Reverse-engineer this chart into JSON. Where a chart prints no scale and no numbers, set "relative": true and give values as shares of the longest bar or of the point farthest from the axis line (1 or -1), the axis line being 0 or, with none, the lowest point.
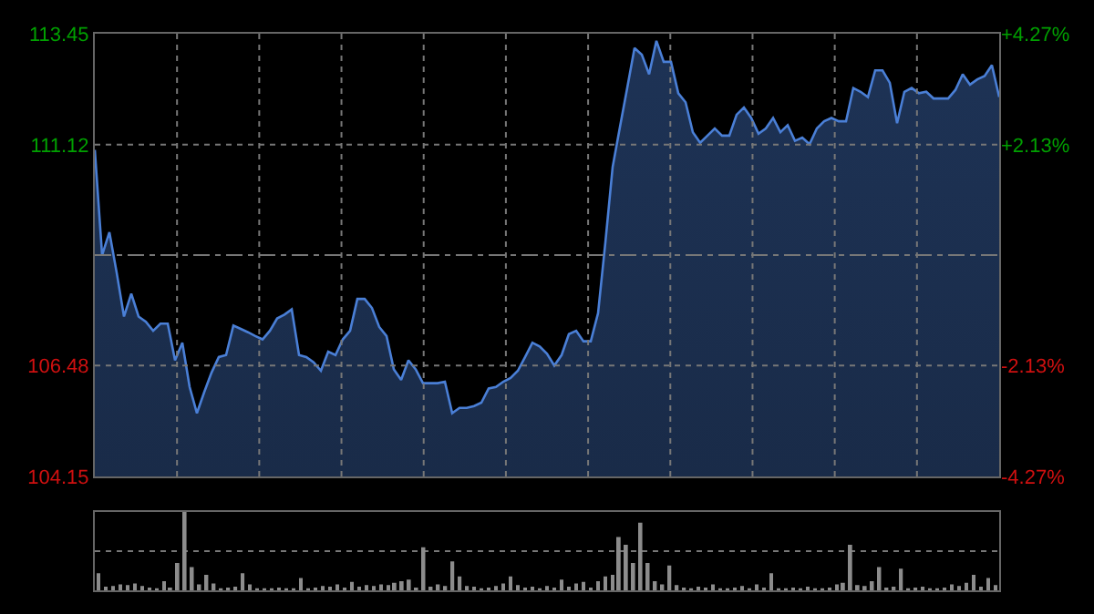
{
  "chart_data": [
    {
      "type": "area",
      "categories": [
        null,
        null,
        null,
        null,
        null,
        null,
        null,
        null,
        null,
        null,
        null,
        null,
        null,
        null,
        null,
        null,
        null,
        null,
        null,
        null,
        null,
        null,
        null,
        null,
        null,
        null,
        null,
        null,
        null,
        null,
        null,
        null,
        null,
        null,
        null,
        null,
        null,
        null,
        null,
        null,
        null,
        null,
        null,
        null,
        null,
        null,
        null,
        null,
        null,
        null,
        null,
        null,
        null,
        null,
        null,
        null,
        null,
        null,
        null,
        null,
        null,
        null,
        null,
        null,
        null,
        null,
        null,
        null,
        null,
        null,
        null,
        null,
        null,
        null,
        null,
        null,
        null,
        null,
        null,
        null,
        null,
        null,
        null,
        null,
        null,
        null,
        null,
        null,
        null,
        null,
        null,
        null,
        null,
        null,
        null,
        null,
        null,
        null,
        null,
        null,
        null,
        null,
        null,
        null,
        null,
        null,
        null,
        null,
        null,
        null,
        null,
        null,
        null,
        null,
        null,
        null,
        null,
        null,
        null,
        null,
        null,
        null,
        null,
        null,
        null
      ],
      "series": [
        {
          "color": "#4a7fd6",
          "values": [
            111.01,
            108.8,
            109.28,
            108.43,
            107.51,
            107.99,
            107.51,
            107.4,
            107.21,
            107.36,
            107.36,
            106.59,
            106.96,
            106.03,
            105.48,
            105.92,
            106.33,
            106.66,
            106.7,
            107.32,
            107.25,
            107.18,
            107.1,
            107.03,
            107.21,
            107.47,
            107.55,
            107.66,
            106.7,
            106.66,
            106.55,
            106.37,
            106.77,
            106.7,
            107.03,
            107.21,
            107.88,
            107.88,
            107.69,
            107.29,
            107.1,
            106.4,
            106.18,
            106.59,
            106.4,
            106.11,
            106.11,
            106.11,
            106.14,
            105.48,
            105.59,
            105.59,
            105.63,
            105.7,
            106.0,
            106.03,
            106.14,
            106.22,
            106.37,
            106.66,
            106.96,
            106.88,
            106.73,
            106.48,
            106.7,
            107.14,
            107.21,
            106.99,
            106.99,
            107.58,
            109.06,
            110.65,
            111.49,
            112.31,
            113.15,
            113.01,
            112.6,
            113.3,
            112.86,
            112.86,
            112.2,
            112.01,
            111.38,
            111.16,
            111.31,
            111.46,
            111.31,
            111.31,
            111.75,
            111.9,
            111.68,
            111.35,
            111.46,
            111.68,
            111.38,
            111.53,
            111.2,
            111.27,
            111.13,
            111.46,
            111.61,
            111.68,
            111.61,
            111.61,
            112.31,
            112.23,
            112.12,
            112.68,
            112.68,
            112.42,
            111.57,
            112.23,
            112.31,
            112.2,
            112.23,
            112.09,
            112.09,
            112.09,
            112.27,
            112.6,
            112.38,
            112.49,
            112.56,
            112.79,
            112.12
          ]
        }
      ],
      "ylim": [
        104.15,
        113.45
      ],
      "yticks": [
        104.15,
        106.48,
        {
          "value": 108.8,
          "label": null
        },
        111.12,
        113.45
      ],
      "y2lim": [
        -4.27,
        4.27
      ],
      "y2ticks": [
        {
          "value": -4.27,
          "label": "-4.27%"
        },
        {
          "value": -2.13,
          "label": "-2.13%"
        },
        {
          "value": 0,
          "label": null
        },
        {
          "value": 2.13,
          "label": "+2.13%"
        },
        {
          "value": 4.27,
          "label": "+4.27%"
        }
      ],
      "grid": true,
      "tick_labels": "y"
    },
    {
      "type": "bar",
      "relative": true,
      "color": "#8c8c8c",
      "ref_lines": [
        {
          "axis": "y",
          "value": 0.5,
          "color": "#777777",
          "line_style": "dotted"
        }
      ],
      "categories": [
        null,
        null,
        null,
        null,
        null,
        null,
        null,
        null,
        null,
        null,
        null,
        null,
        null,
        null,
        null,
        null,
        null,
        null,
        null,
        null,
        null,
        null,
        null,
        null,
        null,
        null,
        null,
        null,
        null,
        null,
        null,
        null,
        null,
        null,
        null,
        null,
        null,
        null,
        null,
        null,
        null,
        null,
        null,
        null,
        null,
        null,
        null,
        null,
        null,
        null,
        null,
        null,
        null,
        null,
        null,
        null,
        null,
        null,
        null,
        null,
        null,
        null,
        null,
        null,
        null,
        null,
        null,
        null,
        null,
        null,
        null,
        null,
        null,
        null,
        null,
        null,
        null,
        null,
        null,
        null,
        null,
        null,
        null,
        null,
        null,
        null,
        null,
        null,
        null,
        null,
        null,
        null,
        null,
        null,
        null,
        null,
        null,
        null,
        null,
        null,
        null,
        null,
        null,
        null,
        null,
        null,
        null,
        null,
        null,
        null,
        null,
        null,
        null,
        null,
        null,
        null,
        null,
        null,
        null,
        null,
        null,
        null,
        null,
        null,
        null
      ],
      "values": [
        0.22,
        0.05,
        0.06,
        0.08,
        0.07,
        0.09,
        0.06,
        0.04,
        0.03,
        0.12,
        0.04,
        0.35,
        1.0,
        0.3,
        0.08,
        0.2,
        0.09,
        0.03,
        0.04,
        0.05,
        0.22,
        0.08,
        0.03,
        0.02,
        0.03,
        0.04,
        0.02,
        0.03,
        0.16,
        0.03,
        0.04,
        0.06,
        0.05,
        0.08,
        0.04,
        0.11,
        0.05,
        0.07,
        0.06,
        0.08,
        0.07,
        0.1,
        0.12,
        0.14,
        0.04,
        0.55,
        0.05,
        0.08,
        0.06,
        0.37,
        0.18,
        0.06,
        0.05,
        0.03,
        0.04,
        0.06,
        0.09,
        0.18,
        0.07,
        0.04,
        0.05,
        0.03,
        0.06,
        0.04,
        0.14,
        0.05,
        0.09,
        0.11,
        0.04,
        0.12,
        0.18,
        0.2,
        0.68,
        0.58,
        0.35,
        0.86,
        0.35,
        0.12,
        0.08,
        0.32,
        0.07,
        0.04,
        0.03,
        0.05,
        0.04,
        0.08,
        0.03,
        0.02,
        0.04,
        0.06,
        0.03,
        0.08,
        0.04,
        0.22,
        0.03,
        0.02,
        0.04,
        0.03,
        0.05,
        0.02,
        0.03,
        0.04,
        0.08,
        0.1,
        0.58,
        0.07,
        0.06,
        0.12,
        0.3,
        0.04,
        0.05,
        0.28,
        0.03,
        0.04,
        0.05,
        0.03,
        0.02,
        0.04,
        0.08,
        0.06,
        0.1,
        0.2,
        0.05,
        0.16,
        0.07
      ]
    }
  ]
}
